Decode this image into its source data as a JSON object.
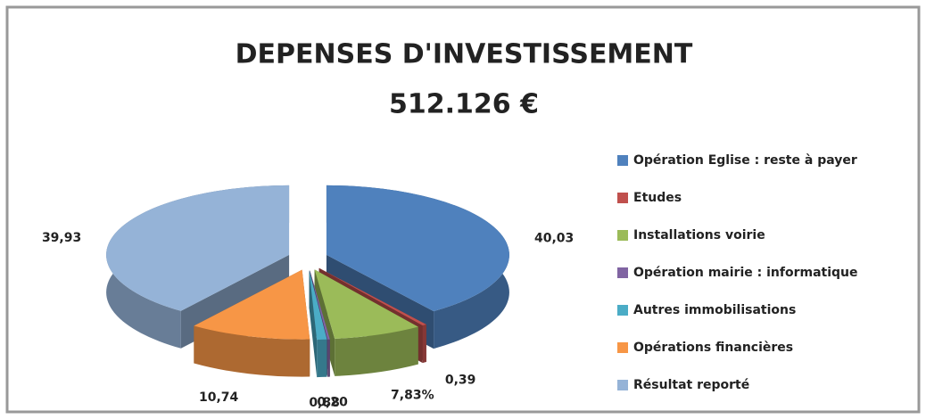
{
  "chart_data": {
    "type": "pie3d",
    "title": "DEPENSES  D'INVESTISSEMENT",
    "subtitle": "512.126 €",
    "categories": [
      "Opération Eglise : reste à payer",
      "Etudes",
      "Installations voirie",
      "Opération mairie : informatique",
      "Autres immobilisations",
      "Opérations financières",
      "Résultat reporté"
    ],
    "values": [
      40.03,
      0.39,
      7.83,
      0.2,
      0.88,
      10.74,
      39.93
    ],
    "value_labels": [
      "40,03",
      "0,39",
      "7,83%",
      "0,20",
      "0,88",
      "10,74",
      "39,93"
    ],
    "colors": [
      "#4f81bd",
      "#c0504d",
      "#9bbb59",
      "#8064a2",
      "#4bacc6",
      "#f79646",
      "#95b3d7"
    ],
    "legend": "right"
  }
}
